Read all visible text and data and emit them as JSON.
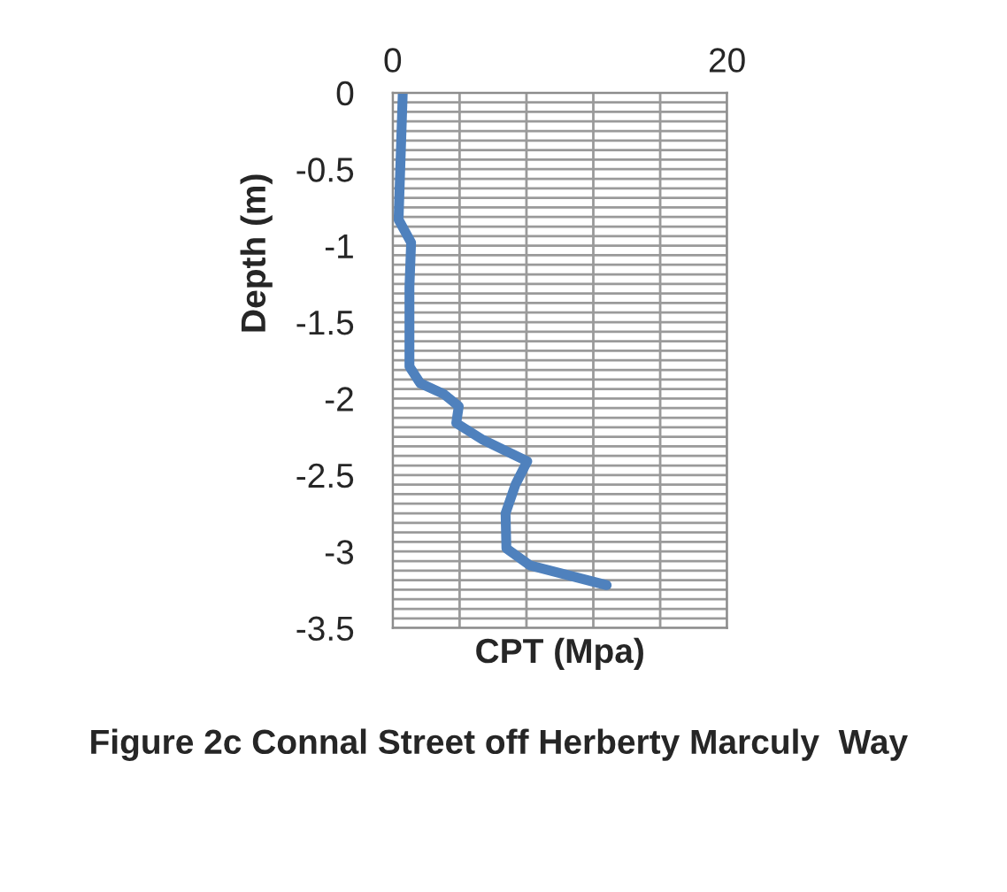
{
  "chart_data": {
    "type": "line",
    "title": "Figure 2c Connal Street off Herberty Marculy  Way",
    "xlabel": "CPT (Mpa)",
    "ylabel": "Depth (m)",
    "x": [
      0.6,
      0.35,
      1.1,
      1.0,
      1.0,
      1.65,
      3.05,
      3.95,
      3.8,
      5.4,
      8.05,
      7.35,
      6.75,
      6.8,
      8.2,
      12.8
    ],
    "series": [
      {
        "color": "#4f81bd",
        "values": [
          0,
          -0.83,
          -0.98,
          -1.27,
          -1.79,
          -1.9,
          -1.97,
          -2.05,
          -2.16,
          -2.27,
          -2.41,
          -2.56,
          -2.75,
          -2.98,
          -3.09,
          -3.22
        ]
      }
    ],
    "xlim": [
      0,
      20
    ],
    "xticks": [
      0,
      20
    ],
    "ylim": [
      -3.5,
      0
    ],
    "yticks": [
      0,
      -0.5,
      -1,
      -1.5,
      -2,
      -2.5,
      -3,
      -3.5
    ],
    "grid": true,
    "marker": "none",
    "line_style": "solid",
    "legend": false
  }
}
